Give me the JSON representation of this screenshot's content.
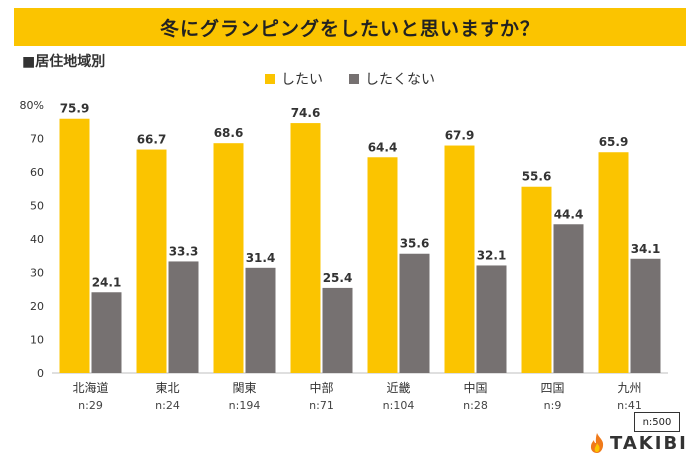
{
  "header": {
    "title": "冬にグランピングをしたいと思いますか？",
    "subtitle": "■居住地域別"
  },
  "legend": [
    {
      "label": "したい",
      "color": "#fbc400"
    },
    {
      "label": "したくない",
      "color": "#767171"
    }
  ],
  "footer": {
    "sample": "n:500",
    "brand": "TAKIBI",
    "brand_icon": "flame-icon"
  },
  "chart_data": {
    "type": "bar",
    "ylim": [
      0,
      80
    ],
    "yticks": [
      "0",
      "10",
      "20",
      "30",
      "40",
      "50",
      "60",
      "70",
      "80%"
    ],
    "categories": [
      "北海道",
      "東北",
      "関東",
      "中部",
      "近畿",
      "中国",
      "四国",
      "九州"
    ],
    "sample_sizes": [
      "n:29",
      "n:24",
      "n:194",
      "n:71",
      "n:104",
      "n:28",
      "n:9",
      "n:41"
    ],
    "series": [
      {
        "name": "したい",
        "color": "#fbc400",
        "values": [
          75.9,
          66.7,
          68.6,
          74.6,
          64.4,
          67.9,
          55.6,
          65.9
        ]
      },
      {
        "name": "したくない",
        "color": "#767171",
        "values": [
          24.1,
          33.3,
          31.4,
          25.4,
          35.6,
          32.1,
          44.4,
          34.1
        ]
      }
    ]
  }
}
